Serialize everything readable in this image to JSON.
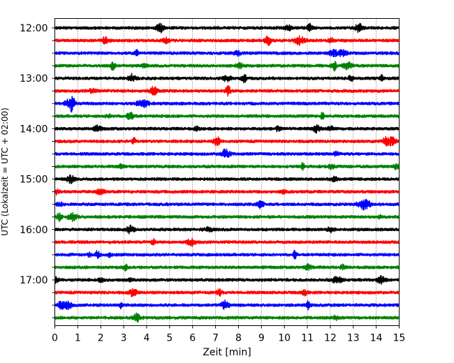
{
  "chart_data": {
    "type": "line",
    "title": "",
    "xlabel": "Zeit  [min]",
    "ylabel": "UTC (Lokalzeit = UTC + 02:00)",
    "xlim": [
      0,
      15
    ],
    "x_ticks": [
      "0",
      "1",
      "2",
      "3",
      "4",
      "5",
      "6",
      "7",
      "8",
      "9",
      "10",
      "11",
      "12",
      "13",
      "14",
      "15"
    ],
    "y_tick_labels": [
      "12:00",
      "13:00",
      "14:00",
      "15:00",
      "16:00",
      "17:00"
    ],
    "grid": "vertical dotted at each minute",
    "trace_colors_cycle": [
      "#000000",
      "#ff0000",
      "#0000ff",
      "#008000"
    ],
    "traces": [
      {
        "start_utc": "12:00",
        "color": "#000000"
      },
      {
        "start_utc": "12:15",
        "color": "#ff0000"
      },
      {
        "start_utc": "12:30",
        "color": "#0000ff"
      },
      {
        "start_utc": "12:45",
        "color": "#008000"
      },
      {
        "start_utc": "13:00",
        "color": "#000000"
      },
      {
        "start_utc": "13:15",
        "color": "#ff0000"
      },
      {
        "start_utc": "13:30",
        "color": "#0000ff"
      },
      {
        "start_utc": "13:45",
        "color": "#008000"
      },
      {
        "start_utc": "14:00",
        "color": "#000000"
      },
      {
        "start_utc": "14:15",
        "color": "#ff0000"
      },
      {
        "start_utc": "14:30",
        "color": "#0000ff"
      },
      {
        "start_utc": "14:45",
        "color": "#008000"
      },
      {
        "start_utc": "15:00",
        "color": "#000000"
      },
      {
        "start_utc": "15:15",
        "color": "#ff0000"
      },
      {
        "start_utc": "15:30",
        "color": "#0000ff"
      },
      {
        "start_utc": "15:45",
        "color": "#008000"
      },
      {
        "start_utc": "16:00",
        "color": "#000000"
      },
      {
        "start_utc": "16:15",
        "color": "#ff0000"
      },
      {
        "start_utc": "16:30",
        "color": "#0000ff"
      },
      {
        "start_utc": "16:45",
        "color": "#008000"
      },
      {
        "start_utc": "17:00",
        "color": "#000000"
      },
      {
        "start_utc": "17:15",
        "color": "#ff0000"
      },
      {
        "start_utc": "17:30",
        "color": "#0000ff"
      },
      {
        "start_utc": "17:45",
        "color": "#008000"
      }
    ]
  }
}
